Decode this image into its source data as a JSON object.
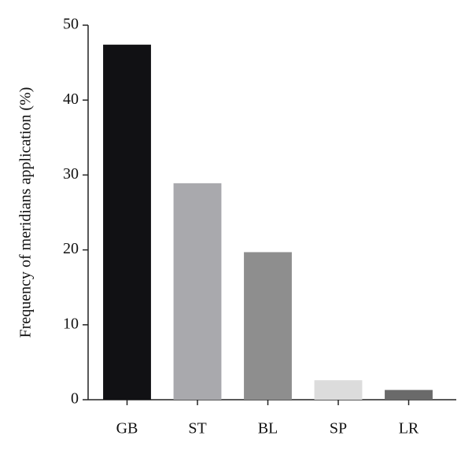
{
  "chart_data": {
    "type": "bar",
    "y_label": "Frequency of meridians application (%)",
    "categories": [
      "GB",
      "ST",
      "BL",
      "SP",
      "LR"
    ],
    "values": [
      47.4,
      28.9,
      19.7,
      2.6,
      1.3
    ],
    "colors": [
      "#111114",
      "#a9a9ad",
      "#8e8e8e",
      "#dcdcdc",
      "#6a6a6a"
    ],
    "ylim": [
      0,
      50
    ],
    "yticks": [
      0,
      10,
      20,
      30,
      40,
      50
    ],
    "grid": false
  }
}
